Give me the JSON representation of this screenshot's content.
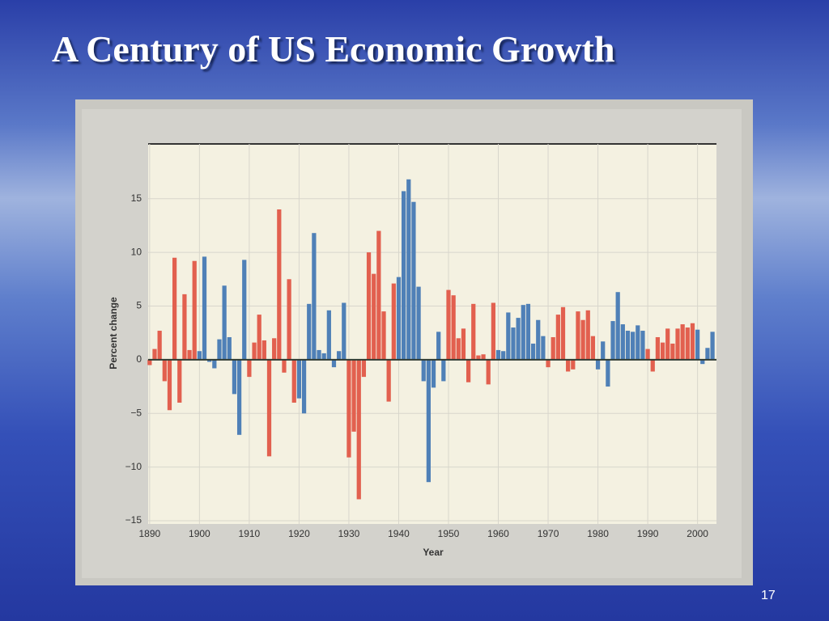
{
  "title": "A Century of US Economic Growth",
  "slide_number": "17",
  "chart_data": {
    "type": "bar",
    "y_label": "Percent change",
    "x_label": "Year",
    "x": [
      1890,
      1891,
      1892,
      1893,
      1894,
      1895,
      1896,
      1897,
      1898,
      1899,
      1900,
      1901,
      1902,
      1903,
      1904,
      1905,
      1906,
      1907,
      1908,
      1909,
      1910,
      1911,
      1912,
      1913,
      1914,
      1915,
      1916,
      1917,
      1918,
      1919,
      1920,
      1921,
      1922,
      1923,
      1924,
      1925,
      1926,
      1927,
      1928,
      1929,
      1930,
      1931,
      1932,
      1933,
      1934,
      1935,
      1936,
      1937,
      1938,
      1939,
      1940,
      1941,
      1942,
      1943,
      1944,
      1945,
      1946,
      1947,
      1948,
      1949,
      1950,
      1951,
      1952,
      1953,
      1954,
      1955,
      1956,
      1957,
      1958,
      1959,
      1960,
      1961,
      1962,
      1963,
      1964,
      1965,
      1966,
      1967,
      1968,
      1969,
      1970,
      1971,
      1972,
      1973,
      1974,
      1975,
      1976,
      1977,
      1978,
      1979,
      1980,
      1981,
      1982,
      1983,
      1984,
      1985,
      1986,
      1987,
      1988,
      1989,
      1990,
      1991,
      1992,
      1993,
      1994,
      1995,
      1996,
      1997,
      1998,
      1999,
      2000,
      2001,
      2002,
      2003
    ],
    "values": [
      -0.5,
      1,
      2.7,
      -2,
      -4.7,
      9.5,
      -4,
      6.1,
      0.9,
      9.2,
      0.8,
      9.6,
      -0.2,
      -0.8,
      1.9,
      6.9,
      2.1,
      -3.2,
      -7,
      9.3,
      -1.6,
      1.6,
      4.2,
      1.8,
      -9,
      2,
      14,
      -1.2,
      7.5,
      -4,
      -3.6,
      -5,
      5.2,
      11.8,
      0.9,
      0.6,
      4.6,
      -0.7,
      0.8,
      5.3,
      -9.1,
      -6.7,
      -13,
      -1.6,
      10,
      8,
      12,
      4.5,
      -3.9,
      7.1,
      7.7,
      15.7,
      16.8,
      14.7,
      6.8,
      -2,
      -11.4,
      -2.6,
      2.6,
      -2,
      6.5,
      6,
      2,
      2.9,
      -2.1,
      5.2,
      0.4,
      0.5,
      -2.3,
      5.3,
      0.9,
      0.8,
      4.4,
      3,
      3.9,
      5.1,
      5.2,
      1.5,
      3.7,
      2.2,
      -0.7,
      2.1,
      4.2,
      4.9,
      -1.1,
      -0.9,
      4.5,
      3.7,
      4.6,
      2.2,
      -0.9,
      1.7,
      -2.5,
      3.6,
      6.3,
      3.3,
      2.7,
      2.6,
      3.2,
      2.7,
      1,
      -1.1,
      2.1,
      1.6,
      2.9,
      1.5,
      2.9,
      3.3,
      3,
      3.4,
      2.8,
      -0.4,
      1.1,
      2.6
    ],
    "palette": [
      "#e2604f",
      "#4f80b7"
    ],
    "bar_color_index": [
      0,
      0,
      0,
      0,
      0,
      0,
      0,
      0,
      0,
      0,
      1,
      1,
      1,
      1,
      1,
      1,
      1,
      1,
      1,
      1,
      0,
      0,
      0,
      0,
      0,
      0,
      0,
      0,
      0,
      0,
      1,
      1,
      1,
      1,
      1,
      1,
      1,
      1,
      1,
      1,
      0,
      0,
      0,
      0,
      0,
      0,
      0,
      0,
      0,
      0,
      1,
      1,
      1,
      1,
      1,
      1,
      1,
      1,
      1,
      1,
      0,
      0,
      0,
      0,
      0,
      0,
      0,
      0,
      0,
      0,
      1,
      1,
      1,
      1,
      1,
      1,
      1,
      1,
      1,
      1,
      0,
      0,
      0,
      0,
      0,
      0,
      0,
      0,
      0,
      0,
      1,
      1,
      1,
      1,
      1,
      1,
      1,
      1,
      1,
      1,
      0,
      0,
      0,
      0,
      0,
      0,
      0,
      0,
      0,
      0,
      1,
      1,
      1,
      1
    ],
    "xlim": [
      1889.7,
      2003.8
    ],
    "ylim": [
      -15.3,
      20.1
    ],
    "xticks": [
      1890,
      1900,
      1910,
      1920,
      1930,
      1940,
      1950,
      1960,
      1970,
      1980,
      1990,
      2000
    ],
    "yticks": [
      {
        "value": -15,
        "label": "−15"
      },
      {
        "value": -10,
        "label": "−10"
      },
      {
        "value": -5,
        "label": "−5"
      },
      0,
      5,
      10,
      15
    ],
    "grid": true
  }
}
